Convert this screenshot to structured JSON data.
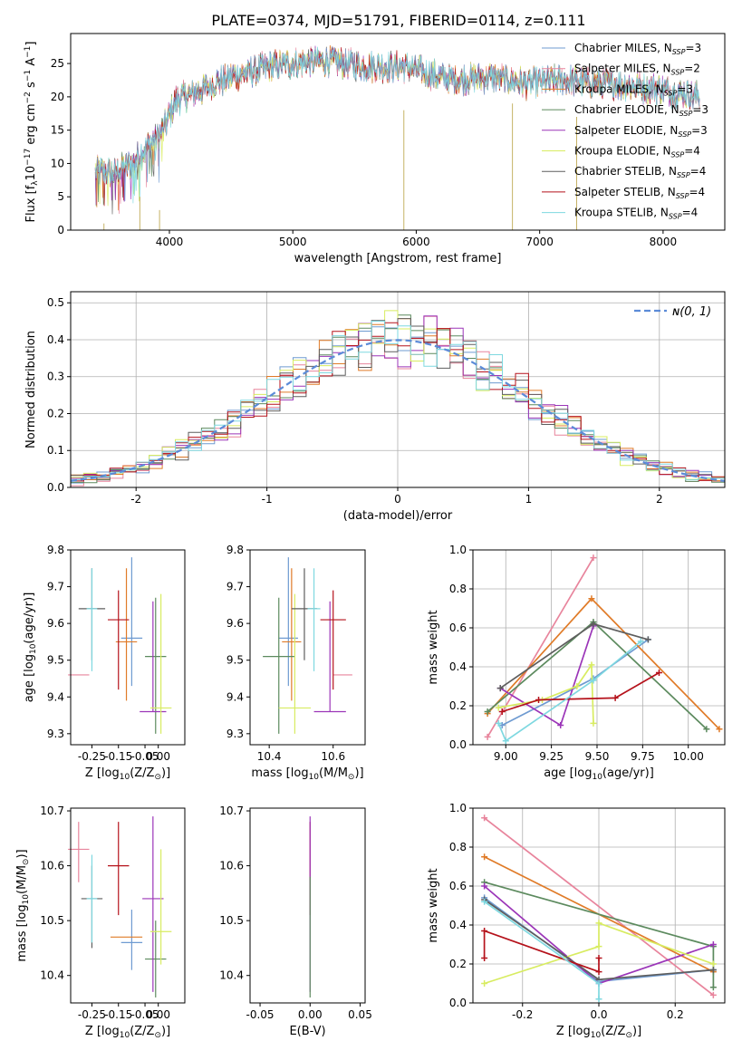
{
  "figure": {
    "title": "PLATE=0374, MJD=51791, FIBERID=0114, z=0.111",
    "colors": [
      "#6f9bd1",
      "#e8849c",
      "#e07b28",
      "#5c8a5e",
      "#9b35b8",
      "#d8ec61",
      "#5e5e5e",
      "#b5121b",
      "#7ed8e0"
    ],
    "dashed_color": "#5b8bd8",
    "model_names": [
      "Chabrier MILES",
      "Salpeter MILES",
      "Kroupa MILES",
      "Chabrier ELODIE",
      "Salpeter ELODIE",
      "Kroupa ELODIE",
      "Chabrier STELIB",
      "Salpeter STELIB",
      "Kroupa STELIB"
    ],
    "model_nssp": [
      "3",
      "2",
      "3",
      "3",
      "3",
      "4",
      "4",
      "4",
      "4"
    ],
    "legend_nssp_prefix": "N",
    "legend_nssp_sub": "SSP",
    "legend_nssp_eq": "=",
    "normal_label": "ɴ(0, 1)"
  },
  "chart_data": [
    {
      "panel": "spectrum",
      "type": "line",
      "title": "PLATE=0374, MJD=51791, FIBERID=0114, z=0.111",
      "xlabel": "wavelength [Angstrom, rest frame]",
      "ylabel_parts": [
        "Flux [f",
        "λ",
        "10",
        "−17",
        " erg cm",
        "−2",
        " s",
        "−1",
        " A",
        "−1",
        "]"
      ],
      "xlim": [
        3200,
        8500
      ],
      "ylim": [
        0,
        29.5
      ],
      "xticks": [
        4000,
        5000,
        6000,
        7000,
        8000
      ],
      "yticks": [
        0,
        5,
        10,
        15,
        20,
        25
      ],
      "legend": "upper right",
      "grid": false,
      "x_range": [
        3400,
        8300
      ],
      "envelope": {
        "x": [
          3400,
          3550,
          3700,
          3850,
          3950,
          4050,
          4250,
          4500,
          4800,
          5000,
          5300,
          5600,
          5900,
          6100,
          6300,
          6600,
          6900,
          7200,
          7500,
          7800,
          8000,
          8300
        ],
        "y": [
          9,
          8.5,
          10,
          13,
          15,
          19.5,
          21,
          23,
          24.5,
          25,
          25.5,
          24.5,
          24.5,
          23.5,
          22.5,
          23,
          22,
          22.5,
          22,
          21.5,
          21,
          20
        ]
      }
    },
    {
      "panel": "residual_histogram",
      "type": "bar",
      "xlabel": "(data-model)/error",
      "ylabel": "Normed distribution",
      "xlim": [
        -2.5,
        2.5
      ],
      "ylim": [
        0,
        0.53
      ],
      "xticks": [
        -2,
        -1,
        0,
        1,
        2
      ],
      "yticks": [
        0.0,
        0.1,
        0.2,
        0.3,
        0.4,
        0.5
      ],
      "grid": true,
      "bin_width": 0.1,
      "normal_curve": {
        "mu": 0,
        "sigma": 1
      }
    },
    {
      "panel": "age_vs_Z",
      "type": "scatter",
      "xlabel_parts": [
        "Z [log",
        "10",
        "(Z/Z",
        "⊙",
        ")]"
      ],
      "ylabel_parts": [
        "age  [log",
        "10",
        "(age/yr)]"
      ],
      "xlim": [
        -0.33,
        0.1
      ],
      "ylim": [
        9.27,
        9.8
      ],
      "xticks": [
        -0.25,
        -0.15,
        -0.05,
        0.0
      ],
      "yticks": [
        9.3,
        9.4,
        9.5,
        9.6,
        9.7,
        9.8
      ],
      "points": [
        {
          "x": -0.1,
          "y": 9.56,
          "xerr": 0.04,
          "yerr": [
            0.13,
            0.22
          ]
        },
        {
          "x": -0.3,
          "y": 9.46,
          "xerr": 0.04,
          "yerr": [
            0.0,
            0.0
          ]
        },
        {
          "x": -0.12,
          "y": 9.55,
          "xerr": 0.04,
          "yerr": [
            0.16,
            0.2
          ]
        },
        {
          "x": -0.01,
          "y": 9.51,
          "xerr": 0.04,
          "yerr": [
            0.21,
            0.16
          ]
        },
        {
          "x": -0.02,
          "y": 9.36,
          "xerr": 0.05,
          "yerr": [
            0.0,
            0.3
          ]
        },
        {
          "x": 0.01,
          "y": 9.37,
          "xerr": 0.04,
          "yerr": [
            0.07,
            0.31
          ]
        },
        {
          "x": -0.25,
          "y": 9.64,
          "xerr": 0.05,
          "yerr": [
            0.14,
            0.11
          ]
        },
        {
          "x": -0.15,
          "y": 9.61,
          "xerr": 0.04,
          "yerr": [
            0.19,
            0.08
          ]
        },
        {
          "x": -0.25,
          "y": 9.64,
          "xerr": 0.02,
          "yerr": [
            0.17,
            0.11
          ]
        }
      ]
    },
    {
      "panel": "age_vs_mass",
      "type": "scatter",
      "xlabel_parts": [
        "mass [log",
        "10",
        "(M/M",
        "⊙",
        ")]"
      ],
      "xlim": [
        10.34,
        10.7
      ],
      "ylim": [
        9.27,
        9.8
      ],
      "xticks": [
        10.4,
        10.6
      ],
      "yticks": [
        9.3,
        9.4,
        9.5,
        9.6,
        9.7,
        9.8
      ],
      "points": [
        {
          "x": 10.46,
          "y": 9.56,
          "xerr": 0.03,
          "yerr": [
            0.13,
            0.22
          ]
        },
        {
          "x": 10.63,
          "y": 9.46,
          "xerr": 0.03,
          "yerr": [
            0.0,
            0.0
          ]
        },
        {
          "x": 10.47,
          "y": 9.55,
          "xerr": 0.03,
          "yerr": [
            0.16,
            0.2
          ]
        },
        {
          "x": 10.43,
          "y": 9.51,
          "xerr": 0.05,
          "yerr": [
            0.21,
            0.16
          ]
        },
        {
          "x": 10.59,
          "y": 9.36,
          "xerr": 0.05,
          "yerr": [
            0.0,
            0.3
          ]
        },
        {
          "x": 10.48,
          "y": 9.37,
          "xerr": 0.05,
          "yerr": [
            0.07,
            0.31
          ]
        },
        {
          "x": 10.51,
          "y": 9.64,
          "xerr": 0.04,
          "yerr": [
            0.14,
            0.11
          ]
        },
        {
          "x": 10.6,
          "y": 9.61,
          "xerr": 0.04,
          "yerr": [
            0.19,
            0.08
          ]
        },
        {
          "x": 10.54,
          "y": 9.64,
          "xerr": 0.02,
          "yerr": [
            0.17,
            0.11
          ]
        }
      ]
    },
    {
      "panel": "mass_weight_vs_age",
      "type": "line",
      "xlabel_parts": [
        "age  [log",
        "10",
        "(age/yr)]"
      ],
      "ylabel": "mass weight",
      "xlim": [
        8.82,
        10.2
      ],
      "ylim": [
        0,
        1.0
      ],
      "xticks": [
        9.0,
        9.25,
        9.5,
        9.75,
        10.0
      ],
      "yticks": [
        0.0,
        0.2,
        0.4,
        0.6,
        0.8,
        1.0
      ],
      "grid": true,
      "series": [
        {
          "x": [
            8.98,
            9.48,
            9.78
          ],
          "y": [
            0.1,
            0.34,
            0.54
          ]
        },
        {
          "x": [
            8.9,
            9.48
          ],
          "y": [
            0.04,
            0.96
          ]
        },
        {
          "x": [
            8.9,
            9.47,
            10.17
          ],
          "y": [
            0.16,
            0.75,
            0.08
          ]
        },
        {
          "x": [
            8.9,
            9.48,
            10.1
          ],
          "y": [
            0.17,
            0.63,
            0.08
          ]
        },
        {
          "x": [
            8.97,
            9.3,
            9.48
          ],
          "y": [
            0.29,
            0.1,
            0.61
          ]
        },
        {
          "x": [
            8.96,
            9.2,
            9.39,
            9.47,
            9.48
          ],
          "y": [
            0.19,
            0.23,
            0.3,
            0.41,
            0.11
          ]
        },
        {
          "x": [
            8.97,
            9.48,
            9.78
          ],
          "y": [
            0.29,
            0.62,
            0.54
          ]
        },
        {
          "x": [
            8.98,
            9.18,
            9.6,
            9.84
          ],
          "y": [
            0.17,
            0.23,
            0.24,
            0.37
          ]
        },
        {
          "x": [
            8.96,
            9.0,
            9.48,
            9.74
          ],
          "y": [
            0.11,
            0.02,
            0.33,
            0.53
          ]
        }
      ]
    },
    {
      "panel": "mass_vs_Z",
      "type": "scatter",
      "xlabel_parts": [
        "Z [log",
        "10",
        "(Z/Z",
        "⊙",
        ")]"
      ],
      "ylabel_parts": [
        "mass [log",
        "10",
        "(M/M",
        "⊙",
        ")]"
      ],
      "xlim": [
        -0.33,
        0.1
      ],
      "ylim": [
        10.35,
        10.705
      ],
      "xticks": [
        -0.25,
        -0.15,
        -0.05,
        0.0
      ],
      "yticks": [
        10.4,
        10.5,
        10.6,
        10.7
      ],
      "points": [
        {
          "x": -0.1,
          "y": 10.46,
          "xerr": 0.04,
          "yerr": [
            0.05,
            0.06
          ]
        },
        {
          "x": -0.3,
          "y": 10.63,
          "xerr": 0.04,
          "yerr": [
            0.06,
            0.05
          ]
        },
        {
          "x": -0.12,
          "y": 10.47,
          "xerr": 0.06,
          "yerr": [
            0.0,
            0.0
          ]
        },
        {
          "x": -0.01,
          "y": 10.43,
          "xerr": 0.04,
          "yerr": [
            0.07,
            0.07
          ]
        },
        {
          "x": -0.02,
          "y": 10.54,
          "xerr": 0.04,
          "yerr": [
            0.17,
            0.15
          ]
        },
        {
          "x": 0.01,
          "y": 10.48,
          "xerr": 0.04,
          "yerr": [
            0.06,
            0.15
          ]
        },
        {
          "x": -0.25,
          "y": 10.54,
          "xerr": 0.04,
          "yerr": [
            0.09,
            0.06
          ]
        },
        {
          "x": -0.15,
          "y": 10.6,
          "xerr": 0.04,
          "yerr": [
            0.09,
            0.08
          ]
        },
        {
          "x": -0.25,
          "y": 10.54,
          "xerr": 0.02,
          "yerr": [
            0.08,
            0.08
          ]
        }
      ]
    },
    {
      "panel": "mass_vs_EBV",
      "type": "scatter",
      "xlabel": "E(B-V)",
      "xlim": [
        -0.06,
        0.055
      ],
      "ylim": [
        10.35,
        10.705
      ],
      "xticks": [
        -0.05,
        0.0,
        0.05
      ],
      "yticks": [
        10.4,
        10.5,
        10.6,
        10.7
      ],
      "points": [
        {
          "x": 0.0,
          "y": 10.6,
          "yerr": [
            0.09,
            0.08
          ]
        },
        {
          "x": 0.0,
          "y": 10.58,
          "yerr": [
            0.21,
            0.11
          ]
        },
        {
          "x": 0.0,
          "y": 10.43,
          "yerr": [
            0.07,
            0.15
          ]
        },
        {
          "x": 0.0,
          "y": 10.5,
          "yerr": [
            0.0,
            0.0
          ]
        }
      ]
    },
    {
      "panel": "mass_weight_vs_Z",
      "type": "line",
      "xlabel_parts": [
        "Z [log",
        "10",
        "(Z/Z",
        "⊙",
        ")]"
      ],
      "ylabel": "mass weight",
      "xlim": [
        -0.33,
        0.33
      ],
      "ylim": [
        0,
        1.0
      ],
      "xticks": [
        -0.2,
        0.0,
        0.2
      ],
      "yticks": [
        0.0,
        0.2,
        0.4,
        0.6,
        0.8,
        1.0
      ],
      "grid": true,
      "series": [
        {
          "x": [
            -0.3,
            0.0,
            0.3
          ],
          "y": [
            0.54,
            0.11,
            0.17
          ]
        },
        {
          "x": [
            -0.3,
            0.3
          ],
          "y": [
            0.95,
            0.04
          ]
        },
        {
          "x": [
            -0.3,
            0.3
          ],
          "y": [
            0.75,
            0.16
          ]
        },
        {
          "x": [
            -0.3,
            0.3,
            0.3
          ],
          "y": [
            0.62,
            0.29,
            0.08
          ]
        },
        {
          "x": [
            -0.3,
            0.0,
            0.3
          ],
          "y": [
            0.6,
            0.1,
            0.3
          ]
        },
        {
          "x": [
            -0.3,
            0.0,
            0.0,
            0.3
          ],
          "y": [
            0.1,
            0.29,
            0.41,
            0.2
          ]
        },
        {
          "x": [
            -0.3,
            0.0,
            0.3
          ],
          "y": [
            0.53,
            0.12,
            0.17
          ]
        },
        {
          "x": [
            -0.3,
            -0.3,
            0.0,
            0.0
          ],
          "y": [
            0.23,
            0.37,
            0.16,
            0.23
          ]
        },
        {
          "x": [
            -0.3,
            0.0,
            0.0
          ],
          "y": [
            0.52,
            0.1,
            0.02
          ]
        }
      ]
    }
  ]
}
